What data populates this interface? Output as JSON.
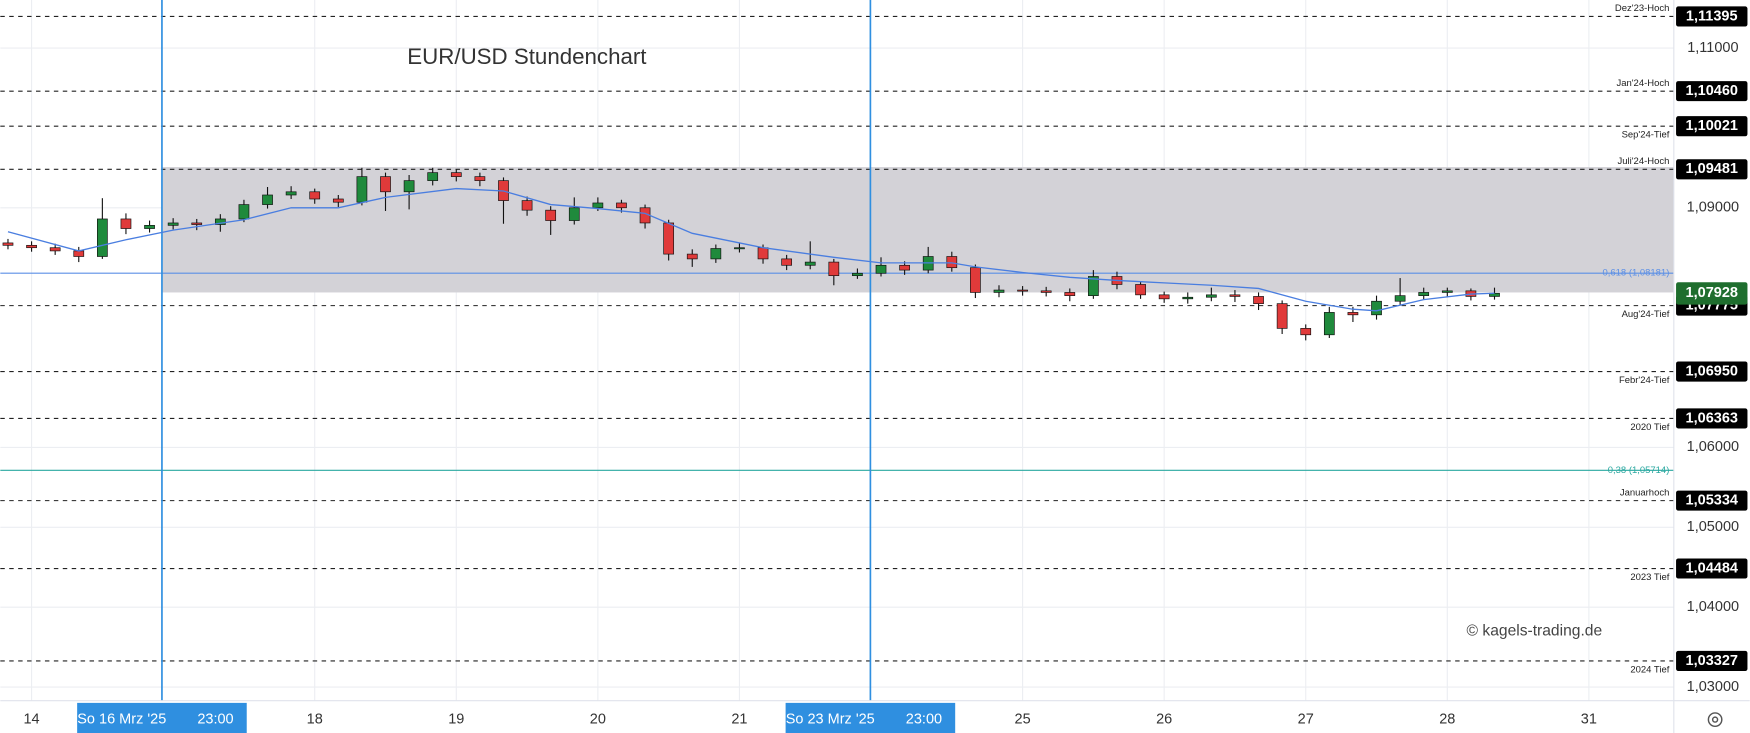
{
  "chart_data": {
    "type": "candlestick",
    "title": "EUR/USD Stundenchart",
    "watermark": "© kagels-trading.de",
    "ylim": [
      1.0283,
      1.11601
    ],
    "yticks": [
      {
        "value": 1.11,
        "label": "1,11000"
      },
      {
        "value": 1.09,
        "label": "1,09000"
      },
      {
        "value": 1.06,
        "label": "1,06000"
      },
      {
        "value": 1.05,
        "label": "1,05000"
      },
      {
        "value": 1.04,
        "label": "1,04000"
      },
      {
        "value": 1.03,
        "label": "1,03000"
      }
    ],
    "xlim": [
      -5.3,
      278.4
    ],
    "xticks": [
      {
        "value": 0,
        "label": "14"
      },
      {
        "value": 48,
        "label": "18"
      },
      {
        "value": 72,
        "label": "19"
      },
      {
        "value": 96,
        "label": "20"
      },
      {
        "value": 120,
        "label": "21"
      },
      {
        "value": 168,
        "label": "25"
      },
      {
        "value": 192,
        "label": "26"
      },
      {
        "value": 216,
        "label": "27"
      },
      {
        "value": 240,
        "label": "28"
      },
      {
        "value": 264,
        "label": "31"
      }
    ],
    "grid": true,
    "up_color": "#1f8a3c",
    "down_color": "#e03a3a",
    "x": [
      -4,
      0,
      4,
      8,
      12,
      16,
      20,
      24,
      28,
      32,
      36,
      40,
      44,
      48,
      52,
      56,
      60,
      64,
      68,
      72,
      76,
      80,
      84,
      88,
      92,
      96,
      100,
      104,
      108,
      112,
      116,
      120,
      124,
      128,
      132,
      136,
      140,
      144,
      148,
      152,
      156,
      160,
      164,
      168,
      172,
      176,
      180,
      184,
      188,
      192,
      196,
      200,
      204,
      208,
      212,
      216,
      220,
      224,
      228,
      232,
      236,
      240,
      244,
      248
    ],
    "open": [
      1.0856,
      1.0853,
      1.085,
      1.0846,
      1.0839,
      1.0886,
      1.0874,
      1.0878,
      1.0881,
      1.0879,
      1.0886,
      1.0904,
      1.0916,
      1.092,
      1.0911,
      1.0907,
      1.0939,
      1.092,
      1.0934,
      1.0944,
      1.0939,
      1.0934,
      1.0909,
      1.0897,
      1.0884,
      1.09,
      1.0906,
      1.09,
      1.0881,
      1.0842,
      1.0836,
      1.0849,
      1.085,
      1.0836,
      1.0828,
      1.0832,
      1.0815,
      1.0818,
      1.0828,
      1.0822,
      1.0839,
      1.0825,
      1.0794,
      1.0797,
      1.0796,
      1.0794,
      1.079,
      1.0814,
      1.0804,
      1.0791,
      1.0786,
      1.0788,
      1.0791,
      1.0789,
      1.078,
      1.0749,
      1.0741,
      1.0769,
      1.0766,
      1.0783,
      1.079,
      1.0794,
      1.0796,
      1.0789
    ],
    "high": [
      1.0861,
      1.0858,
      1.0855,
      1.0851,
      1.0912,
      1.0893,
      1.0884,
      1.0887,
      1.0886,
      1.0892,
      1.091,
      1.0926,
      1.0927,
      1.0924,
      1.0916,
      1.095,
      1.0944,
      1.0941,
      1.095,
      1.0948,
      1.0944,
      1.0938,
      1.0914,
      1.0902,
      1.0913,
      1.0913,
      1.091,
      1.0904,
      1.0885,
      1.0848,
      1.0854,
      1.0856,
      1.0854,
      1.0841,
      1.0858,
      1.0836,
      1.0824,
      1.0838,
      1.0833,
      1.0851,
      1.0845,
      1.0829,
      1.0803,
      1.0802,
      1.0801,
      1.0799,
      1.0822,
      1.082,
      1.0808,
      1.0795,
      1.0794,
      1.08,
      1.0797,
      1.0794,
      1.0784,
      1.0754,
      1.0776,
      1.0776,
      1.079,
      1.0812,
      1.08,
      1.08,
      1.0799,
      1.08
    ],
    "low": [
      1.0848,
      1.0845,
      1.0841,
      1.0832,
      1.0836,
      1.0867,
      1.0869,
      1.0873,
      1.0872,
      1.087,
      1.0882,
      1.0899,
      1.0911,
      1.0905,
      1.0901,
      1.0903,
      1.0896,
      1.0898,
      1.0928,
      1.0933,
      1.0927,
      1.088,
      1.089,
      1.0866,
      1.0879,
      1.0896,
      1.0894,
      1.0874,
      1.0834,
      1.0826,
      1.0831,
      1.0844,
      1.083,
      1.0822,
      1.0823,
      1.0803,
      1.0811,
      1.0814,
      1.0816,
      1.0818,
      1.082,
      1.0787,
      1.0788,
      1.079,
      1.0789,
      1.0783,
      1.0786,
      1.0798,
      1.0786,
      1.0781,
      1.078,
      1.0783,
      1.0782,
      1.0772,
      1.0742,
      1.0734,
      1.0737,
      1.0757,
      1.076,
      1.0778,
      1.0785,
      1.0789,
      1.0784,
      1.0785
    ],
    "close": [
      1.0853,
      1.085,
      1.0846,
      1.0839,
      1.0886,
      1.0874,
      1.0878,
      1.0881,
      1.0879,
      1.0886,
      1.0904,
      1.0916,
      1.092,
      1.0911,
      1.0907,
      1.0939,
      1.092,
      1.0934,
      1.0944,
      1.0939,
      1.0934,
      1.0909,
      1.0897,
      1.0884,
      1.09,
      1.0906,
      1.09,
      1.0881,
      1.0842,
      1.0836,
      1.0849,
      1.085,
      1.0836,
      1.0828,
      1.0832,
      1.0815,
      1.0818,
      1.0828,
      1.0822,
      1.0839,
      1.0825,
      1.0794,
      1.0797,
      1.0796,
      1.0794,
      1.079,
      1.0814,
      1.0804,
      1.0791,
      1.0786,
      1.0788,
      1.0791,
      1.0789,
      1.078,
      1.0749,
      1.0741,
      1.0769,
      1.0766,
      1.0783,
      1.079,
      1.0794,
      1.0796,
      1.0789,
      1.0793
    ],
    "ma": {
      "color": "#4a7ee0",
      "x": [
        -4,
        8,
        16,
        24,
        36,
        44,
        52,
        60,
        72,
        80,
        88,
        96,
        104,
        112,
        124,
        136,
        144,
        156,
        160,
        168,
        176,
        184,
        192,
        200,
        208,
        216,
        224,
        228,
        236,
        244,
        248
      ],
      "values": [
        1.087,
        1.0846,
        1.086,
        1.0872,
        1.0885,
        1.09,
        1.09,
        1.0913,
        1.0924,
        1.0921,
        1.0904,
        1.0899,
        1.0893,
        1.0868,
        1.085,
        1.0838,
        1.0831,
        1.0831,
        1.0826,
        1.0819,
        1.0813,
        1.0809,
        1.0806,
        1.0803,
        1.0799,
        1.0783,
        1.0773,
        1.0771,
        1.0785,
        1.0792,
        1.0793
      ]
    },
    "zone": {
      "x0": 22.1,
      "from": 1.0794,
      "to": 1.0951,
      "color": "#d3d2d7"
    },
    "levels": [
      {
        "name": "Dez'23-Hoch",
        "value": 1.11395,
        "label": "1,11395"
      },
      {
        "name": "Jan'24-Hoch",
        "value": 1.1046,
        "label": "1,10460"
      },
      {
        "name": "Sep'24-Tief",
        "value": 1.10021,
        "label": "1,10021"
      },
      {
        "name": "Juli'24-Hoch",
        "value": 1.09481,
        "label": "1,09481"
      },
      {
        "name": "Aug'24-Tief",
        "value": 1.07775,
        "label": "1,07775"
      },
      {
        "name": "Febr'24-Tief",
        "value": 1.0695,
        "label": "1,06950"
      },
      {
        "name": "2020 Tief",
        "value": 1.06363,
        "label": "1,06363"
      },
      {
        "name": "Januarhoch",
        "value": 1.05334,
        "label": "1,05334"
      },
      {
        "name": "2023 Tief",
        "value": 1.04484,
        "label": "1,04484"
      },
      {
        "name": "2024 Tief",
        "value": 1.03327,
        "label": "1,03327"
      }
    ],
    "fib": [
      {
        "label": "0,618 (1,08181)",
        "value": 1.08181,
        "color": "#5b8fe6"
      },
      {
        "label": "0,38 (1,05714)",
        "value": 1.05714,
        "color": "#2aa8a0"
      }
    ],
    "last_price": {
      "value": 1.07928,
      "label": "1,07928",
      "color": "#1f6e2e"
    },
    "x_markers": [
      {
        "value": 22.1,
        "label": "So 16 Mrz '25",
        "time": "23:00"
      },
      {
        "value": 142.2,
        "label": "So 23 Mrz '25",
        "time": "23:00"
      }
    ]
  }
}
